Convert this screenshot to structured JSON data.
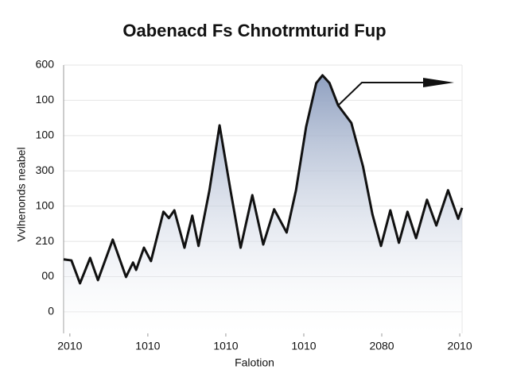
{
  "chart_data": {
    "type": "line",
    "title": "Oabenacd Fs Chnotrmturid Fup",
    "x_label": "Falotion",
    "y_label": "Vvlhenonds neabel",
    "xlim": [
      -0.08,
      5.03
    ],
    "xticks": [
      {
        "value": 0,
        "label": "2010"
      },
      {
        "value": 1,
        "label": "1010"
      },
      {
        "value": 2,
        "label": "1010"
      },
      {
        "value": 3,
        "label": "1010"
      },
      {
        "value": 4,
        "label": "2080"
      },
      {
        "value": 5,
        "label": "2010"
      }
    ],
    "ylim": [
      -0.61,
      7
    ],
    "yticks": [
      0,
      {
        "value": 1,
        "label": "00"
      },
      {
        "value": 2,
        "label": "210"
      },
      {
        "value": 3,
        "label": "100"
      },
      {
        "value": 4,
        "label": "300"
      },
      {
        "value": 5,
        "label": "100"
      },
      {
        "value": 6,
        "label": "100"
      },
      {
        "value": 7,
        "label": "600"
      }
    ],
    "grid": true,
    "series": [
      {
        "color": "#111111",
        "x": [
          -0.08,
          0.02,
          0.13,
          0.26,
          0.36,
          0.55,
          0.72,
          0.81,
          0.85,
          0.95,
          1.04,
          1.2,
          1.27,
          1.34,
          1.47,
          1.57,
          1.65,
          1.79,
          1.92,
          2.06,
          2.19,
          2.34,
          2.48,
          2.62,
          2.78,
          2.9,
          3.03,
          3.16,
          3.24,
          3.33,
          3.44,
          3.61,
          3.76,
          3.88,
          3.99,
          4.11,
          4.22,
          4.33,
          4.44,
          4.58,
          4.7,
          4.85,
          4.98,
          5.03
        ],
        "values": [
          1.49,
          1.46,
          0.81,
          1.53,
          0.9,
          2.05,
          0.99,
          1.4,
          1.19,
          1.82,
          1.44,
          2.84,
          2.66,
          2.88,
          1.82,
          2.73,
          1.87,
          3.45,
          5.29,
          3.45,
          1.82,
          3.31,
          1.91,
          2.91,
          2.25,
          3.45,
          5.25,
          6.49,
          6.71,
          6.49,
          5.86,
          5.36,
          4.12,
          2.77,
          1.87,
          2.88,
          1.96,
          2.84,
          2.09,
          3.18,
          2.45,
          3.45,
          2.64,
          2.95
        ]
      }
    ]
  }
}
